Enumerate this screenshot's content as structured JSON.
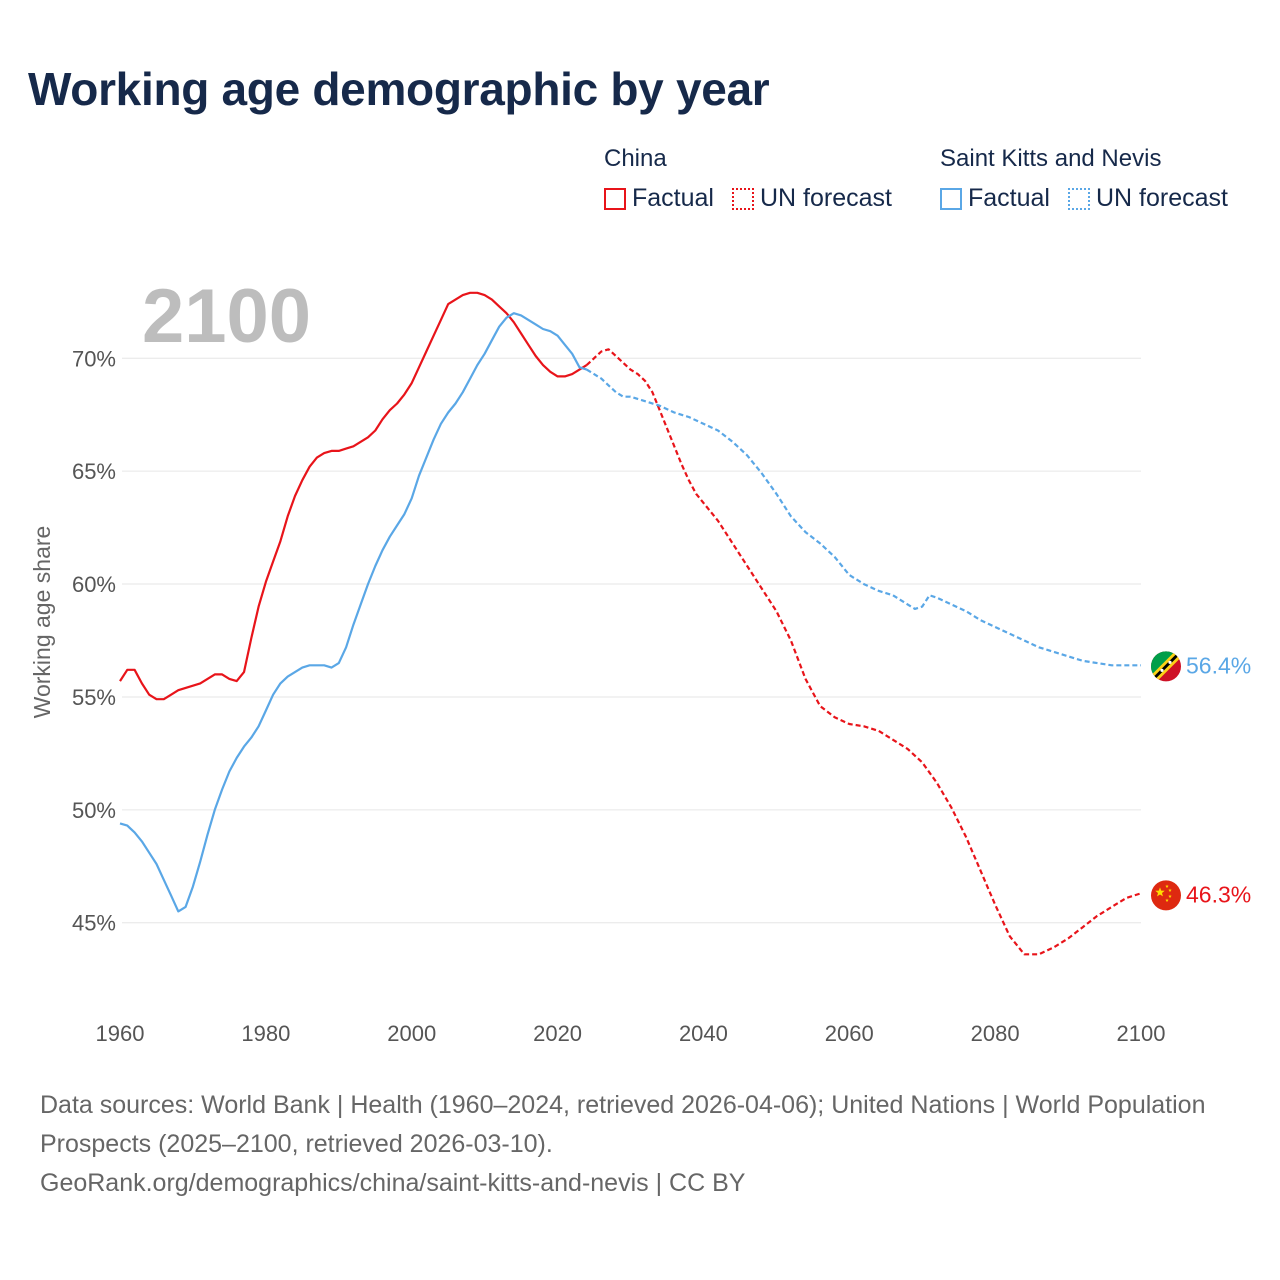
{
  "title": "Working age demographic by year",
  "legend": {
    "groups": [
      {
        "name": "China",
        "color": "#e8141a",
        "factual_label": "Factual",
        "forecast_label": "UN forecast"
      },
      {
        "name": "Saint Kitts and Nevis",
        "color": "#5aa7e6",
        "factual_label": "Factual",
        "forecast_label": "UN forecast"
      }
    ]
  },
  "footer": {
    "sources": "Data sources: World Bank | Health (1960–2024, retrieved 2026-04-06); United Nations | World Population Prospects (2025–2100, retrieved 2026-03-10).",
    "credit": "GeoRank.org/demographics/china/saint-kitts-and-nevis | CC BY"
  },
  "chart_data": {
    "type": "line",
    "title": "Working age demographic by year",
    "year_label": "2100",
    "ylabel": "Working age share",
    "xlabel": "",
    "xlim": [
      1960,
      2100
    ],
    "ylim": [
      41,
      74
    ],
    "x_ticks": [
      "1960",
      "1980",
      "2000",
      "2020",
      "2040",
      "2060",
      "2080",
      "2100"
    ],
    "y_ticks": [
      {
        "value": 45,
        "label": "45%"
      },
      {
        "value": 50,
        "label": "50%"
      },
      {
        "value": 55,
        "label": "55%"
      },
      {
        "value": 60,
        "label": "60%"
      },
      {
        "value": 65,
        "label": "65%"
      },
      {
        "value": 70,
        "label": "70%"
      }
    ],
    "forecast_start": 2024,
    "series": [
      {
        "name": "China",
        "color": "#e8141a",
        "end_label": "46.3%",
        "points": [
          [
            1960,
            55.7
          ],
          [
            1961,
            56.2
          ],
          [
            1962,
            56.2
          ],
          [
            1963,
            55.6
          ],
          [
            1964,
            55.1
          ],
          [
            1965,
            54.9
          ],
          [
            1966,
            54.9
          ],
          [
            1967,
            55.1
          ],
          [
            1968,
            55.3
          ],
          [
            1969,
            55.4
          ],
          [
            1970,
            55.5
          ],
          [
            1971,
            55.6
          ],
          [
            1972,
            55.8
          ],
          [
            1973,
            56.0
          ],
          [
            1974,
            56.0
          ],
          [
            1975,
            55.8
          ],
          [
            1976,
            55.7
          ],
          [
            1977,
            56.1
          ],
          [
            1978,
            57.6
          ],
          [
            1979,
            59.0
          ],
          [
            1980,
            60.1
          ],
          [
            1981,
            61.0
          ],
          [
            1982,
            61.9
          ],
          [
            1983,
            63.0
          ],
          [
            1984,
            63.9
          ],
          [
            1985,
            64.6
          ],
          [
            1986,
            65.2
          ],
          [
            1987,
            65.6
          ],
          [
            1988,
            65.8
          ],
          [
            1989,
            65.9
          ],
          [
            1990,
            65.9
          ],
          [
            1991,
            66.0
          ],
          [
            1992,
            66.1
          ],
          [
            1993,
            66.3
          ],
          [
            1994,
            66.5
          ],
          [
            1995,
            66.8
          ],
          [
            1996,
            67.3
          ],
          [
            1997,
            67.7
          ],
          [
            1998,
            68.0
          ],
          [
            1999,
            68.4
          ],
          [
            2000,
            68.9
          ],
          [
            2001,
            69.6
          ],
          [
            2002,
            70.3
          ],
          [
            2003,
            71.0
          ],
          [
            2004,
            71.7
          ],
          [
            2005,
            72.4
          ],
          [
            2006,
            72.6
          ],
          [
            2007,
            72.8
          ],
          [
            2008,
            72.9
          ],
          [
            2009,
            72.9
          ],
          [
            2010,
            72.8
          ],
          [
            2011,
            72.6
          ],
          [
            2012,
            72.3
          ],
          [
            2013,
            72.0
          ],
          [
            2014,
            71.6
          ],
          [
            2015,
            71.1
          ],
          [
            2016,
            70.6
          ],
          [
            2017,
            70.1
          ],
          [
            2018,
            69.7
          ],
          [
            2019,
            69.4
          ],
          [
            2020,
            69.2
          ],
          [
            2021,
            69.2
          ],
          [
            2022,
            69.3
          ],
          [
            2023,
            69.5
          ],
          [
            2024,
            69.7
          ],
          [
            2025,
            70.0
          ],
          [
            2026,
            70.3
          ],
          [
            2027,
            70.4
          ],
          [
            2028,
            70.1
          ],
          [
            2029,
            69.8
          ],
          [
            2030,
            69.5
          ],
          [
            2031,
            69.3
          ],
          [
            2032,
            69.0
          ],
          [
            2033,
            68.5
          ],
          [
            2034,
            67.7
          ],
          [
            2035,
            66.9
          ],
          [
            2036,
            66.1
          ],
          [
            2037,
            65.3
          ],
          [
            2038,
            64.6
          ],
          [
            2039,
            64.0
          ],
          [
            2040,
            63.6
          ],
          [
            2042,
            62.8
          ],
          [
            2044,
            61.8
          ],
          [
            2046,
            60.8
          ],
          [
            2048,
            59.8
          ],
          [
            2050,
            58.8
          ],
          [
            2052,
            57.5
          ],
          [
            2054,
            55.8
          ],
          [
            2056,
            54.6
          ],
          [
            2058,
            54.1
          ],
          [
            2060,
            53.8
          ],
          [
            2062,
            53.7
          ],
          [
            2064,
            53.5
          ],
          [
            2066,
            53.1
          ],
          [
            2068,
            52.7
          ],
          [
            2070,
            52.1
          ],
          [
            2072,
            51.2
          ],
          [
            2074,
            50.1
          ],
          [
            2076,
            48.8
          ],
          [
            2078,
            47.3
          ],
          [
            2080,
            45.8
          ],
          [
            2082,
            44.4
          ],
          [
            2084,
            43.6
          ],
          [
            2086,
            43.6
          ],
          [
            2088,
            43.9
          ],
          [
            2090,
            44.3
          ],
          [
            2092,
            44.8
          ],
          [
            2094,
            45.3
          ],
          [
            2096,
            45.7
          ],
          [
            2098,
            46.1
          ],
          [
            2100,
            46.3
          ]
        ]
      },
      {
        "name": "Saint Kitts and Nevis",
        "color": "#5aa7e6",
        "end_label": "56.4%",
        "points": [
          [
            1960,
            49.4
          ],
          [
            1961,
            49.3
          ],
          [
            1962,
            49.0
          ],
          [
            1963,
            48.6
          ],
          [
            1964,
            48.1
          ],
          [
            1965,
            47.6
          ],
          [
            1966,
            46.9
          ],
          [
            1967,
            46.2
          ],
          [
            1968,
            45.5
          ],
          [
            1969,
            45.7
          ],
          [
            1970,
            46.6
          ],
          [
            1971,
            47.7
          ],
          [
            1972,
            48.9
          ],
          [
            1973,
            50.0
          ],
          [
            1974,
            50.9
          ],
          [
            1975,
            51.7
          ],
          [
            1976,
            52.3
          ],
          [
            1977,
            52.8
          ],
          [
            1978,
            53.2
          ],
          [
            1979,
            53.7
          ],
          [
            1980,
            54.4
          ],
          [
            1981,
            55.1
          ],
          [
            1982,
            55.6
          ],
          [
            1983,
            55.9
          ],
          [
            1984,
            56.1
          ],
          [
            1985,
            56.3
          ],
          [
            1986,
            56.4
          ],
          [
            1987,
            56.4
          ],
          [
            1988,
            56.4
          ],
          [
            1989,
            56.3
          ],
          [
            1990,
            56.5
          ],
          [
            1991,
            57.2
          ],
          [
            1992,
            58.2
          ],
          [
            1993,
            59.1
          ],
          [
            1994,
            60.0
          ],
          [
            1995,
            60.8
          ],
          [
            1996,
            61.5
          ],
          [
            1997,
            62.1
          ],
          [
            1998,
            62.6
          ],
          [
            1999,
            63.1
          ],
          [
            2000,
            63.8
          ],
          [
            2001,
            64.8
          ],
          [
            2002,
            65.6
          ],
          [
            2003,
            66.4
          ],
          [
            2004,
            67.1
          ],
          [
            2005,
            67.6
          ],
          [
            2006,
            68.0
          ],
          [
            2007,
            68.5
          ],
          [
            2008,
            69.1
          ],
          [
            2009,
            69.7
          ],
          [
            2010,
            70.2
          ],
          [
            2011,
            70.8
          ],
          [
            2012,
            71.4
          ],
          [
            2013,
            71.8
          ],
          [
            2014,
            72.0
          ],
          [
            2015,
            71.9
          ],
          [
            2016,
            71.7
          ],
          [
            2017,
            71.5
          ],
          [
            2018,
            71.3
          ],
          [
            2019,
            71.2
          ],
          [
            2020,
            71.0
          ],
          [
            2021,
            70.6
          ],
          [
            2022,
            70.2
          ],
          [
            2023,
            69.6
          ],
          [
            2024,
            69.5
          ],
          [
            2025,
            69.3
          ],
          [
            2026,
            69.1
          ],
          [
            2027,
            68.8
          ],
          [
            2028,
            68.5
          ],
          [
            2029,
            68.3
          ],
          [
            2030,
            68.3
          ],
          [
            2032,
            68.1
          ],
          [
            2034,
            67.9
          ],
          [
            2036,
            67.6
          ],
          [
            2038,
            67.4
          ],
          [
            2040,
            67.1
          ],
          [
            2042,
            66.8
          ],
          [
            2044,
            66.3
          ],
          [
            2046,
            65.7
          ],
          [
            2048,
            64.9
          ],
          [
            2050,
            64.0
          ],
          [
            2052,
            63.0
          ],
          [
            2054,
            62.3
          ],
          [
            2056,
            61.8
          ],
          [
            2058,
            61.2
          ],
          [
            2060,
            60.4
          ],
          [
            2062,
            60.0
          ],
          [
            2064,
            59.7
          ],
          [
            2066,
            59.5
          ],
          [
            2068,
            59.1
          ],
          [
            2069,
            58.9
          ],
          [
            2070,
            59.0
          ],
          [
            2071,
            59.5
          ],
          [
            2072,
            59.4
          ],
          [
            2074,
            59.1
          ],
          [
            2076,
            58.8
          ],
          [
            2078,
            58.4
          ],
          [
            2080,
            58.1
          ],
          [
            2082,
            57.8
          ],
          [
            2084,
            57.5
          ],
          [
            2086,
            57.2
          ],
          [
            2088,
            57.0
          ],
          [
            2090,
            56.8
          ],
          [
            2092,
            56.6
          ],
          [
            2094,
            56.5
          ],
          [
            2096,
            56.4
          ],
          [
            2098,
            56.4
          ],
          [
            2100,
            56.4
          ]
        ]
      }
    ]
  }
}
